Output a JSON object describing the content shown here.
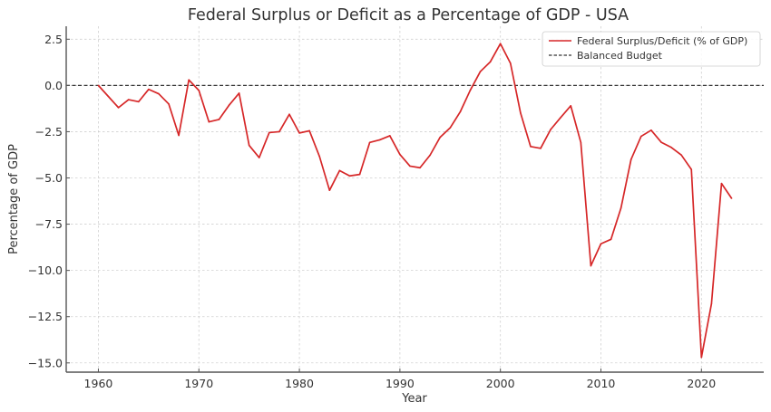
{
  "chart_data": {
    "type": "line",
    "title": "Federal Surplus or Deficit as a Percentage of GDP - USA",
    "xlabel": "Year",
    "ylabel": "Percentage of GDP",
    "xlim": [
      1956.8,
      2026.2
    ],
    "ylim": [
      -15.5,
      3.2
    ],
    "xticks": [
      1960,
      1970,
      1980,
      1990,
      2000,
      2010,
      2020
    ],
    "xtick_labels": [
      "1960",
      "1970",
      "1980",
      "1990",
      "2000",
      "2010",
      "2020"
    ],
    "yticks": [
      2.5,
      0.0,
      -2.5,
      -5.0,
      -7.5,
      -10.0,
      -12.5,
      -15.0
    ],
    "ytick_labels": [
      "2.5",
      "0.0",
      "−2.5",
      "−5.0",
      "−7.5",
      "−10.0",
      "−12.5",
      "−15.0"
    ],
    "grid": true,
    "legend_position": "top-right",
    "x": [
      1960,
      1961,
      1962,
      1963,
      1964,
      1965,
      1966,
      1967,
      1968,
      1969,
      1970,
      1971,
      1972,
      1973,
      1974,
      1975,
      1976,
      1977,
      1978,
      1979,
      1980,
      1981,
      1982,
      1983,
      1984,
      1985,
      1986,
      1987,
      1988,
      1989,
      1990,
      1991,
      1992,
      1993,
      1994,
      1995,
      1996,
      1997,
      1998,
      1999,
      2000,
      2001,
      2002,
      2003,
      2004,
      2005,
      2006,
      2007,
      2008,
      2009,
      2010,
      2011,
      2012,
      2013,
      2014,
      2015,
      2016,
      2017,
      2018,
      2019,
      2020,
      2021,
      2022,
      2023
    ],
    "series": [
      {
        "name": "Federal Surplus/Deficit (% of GDP)",
        "color": "#d62728",
        "style": "solid",
        "values": [
          0.0,
          -0.6,
          -1.2,
          -0.77,
          -0.88,
          -0.21,
          -0.45,
          -1.0,
          -2.7,
          0.3,
          -0.27,
          -1.97,
          -1.84,
          -1.07,
          -0.42,
          -3.24,
          -3.9,
          -2.55,
          -2.5,
          -1.56,
          -2.57,
          -2.45,
          -3.84,
          -5.67,
          -4.6,
          -4.89,
          -4.81,
          -3.08,
          -2.94,
          -2.72,
          -3.73,
          -4.36,
          -4.45,
          -3.77,
          -2.8,
          -2.29,
          -1.43,
          -0.26,
          0.75,
          1.28,
          2.26,
          1.2,
          -1.48,
          -3.3,
          -3.4,
          -2.38,
          -1.73,
          -1.1,
          -3.08,
          -9.75,
          -8.56,
          -8.32,
          -6.62,
          -4.0,
          -2.75,
          -2.42,
          -3.07,
          -3.35,
          -3.76,
          -4.54,
          -14.7,
          -11.8,
          -5.3,
          -6.1
        ]
      },
      {
        "name": "Balanced Budget",
        "color": "#333333",
        "style": "dashed",
        "value": 0.0
      }
    ]
  }
}
